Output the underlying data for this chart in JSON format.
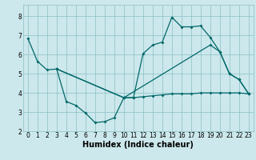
{
  "xlabel": "Humidex (Indice chaleur)",
  "bg_color": "#cce8ec",
  "grid_color": "#88bfc4",
  "line_color": "#006868",
  "xlim": [
    -0.5,
    23.5
  ],
  "ylim": [
    2.0,
    8.6
  ],
  "yticks": [
    2,
    3,
    4,
    5,
    6,
    7,
    8
  ],
  "xticks": [
    0,
    1,
    2,
    3,
    4,
    5,
    6,
    7,
    8,
    9,
    10,
    11,
    12,
    13,
    14,
    15,
    16,
    17,
    18,
    19,
    20,
    21,
    22,
    23
  ],
  "line1_x": [
    0,
    1,
    2,
    3,
    10,
    11,
    12,
    13,
    14,
    15,
    16,
    17,
    18,
    19,
    20,
    21,
    22,
    23
  ],
  "line1_y": [
    6.85,
    5.65,
    5.2,
    5.25,
    3.75,
    3.75,
    6.05,
    6.5,
    6.65,
    7.95,
    7.45,
    7.45,
    7.5,
    6.9,
    6.15,
    5.0,
    4.7,
    3.95
  ],
  "line2_x": [
    3,
    4,
    5,
    6,
    7,
    8,
    9,
    10,
    11,
    12,
    13,
    14,
    15,
    16,
    17,
    18,
    19,
    20,
    21,
    22,
    23
  ],
  "line2_y": [
    5.25,
    3.55,
    3.35,
    2.95,
    2.45,
    2.5,
    2.7,
    3.75,
    3.75,
    3.8,
    3.85,
    3.9,
    3.95,
    3.95,
    3.95,
    4.0,
    4.0,
    4.0,
    4.0,
    4.0,
    3.95
  ],
  "line3_x": [
    3,
    10,
    19,
    20,
    21,
    22,
    23
  ],
  "line3_y": [
    5.25,
    3.75,
    6.5,
    6.15,
    5.0,
    4.7,
    3.95
  ],
  "marker": "D",
  "markersize": 2.0,
  "linewidth": 0.9,
  "tick_fontsize": 5.5,
  "xlabel_fontsize": 7.0
}
